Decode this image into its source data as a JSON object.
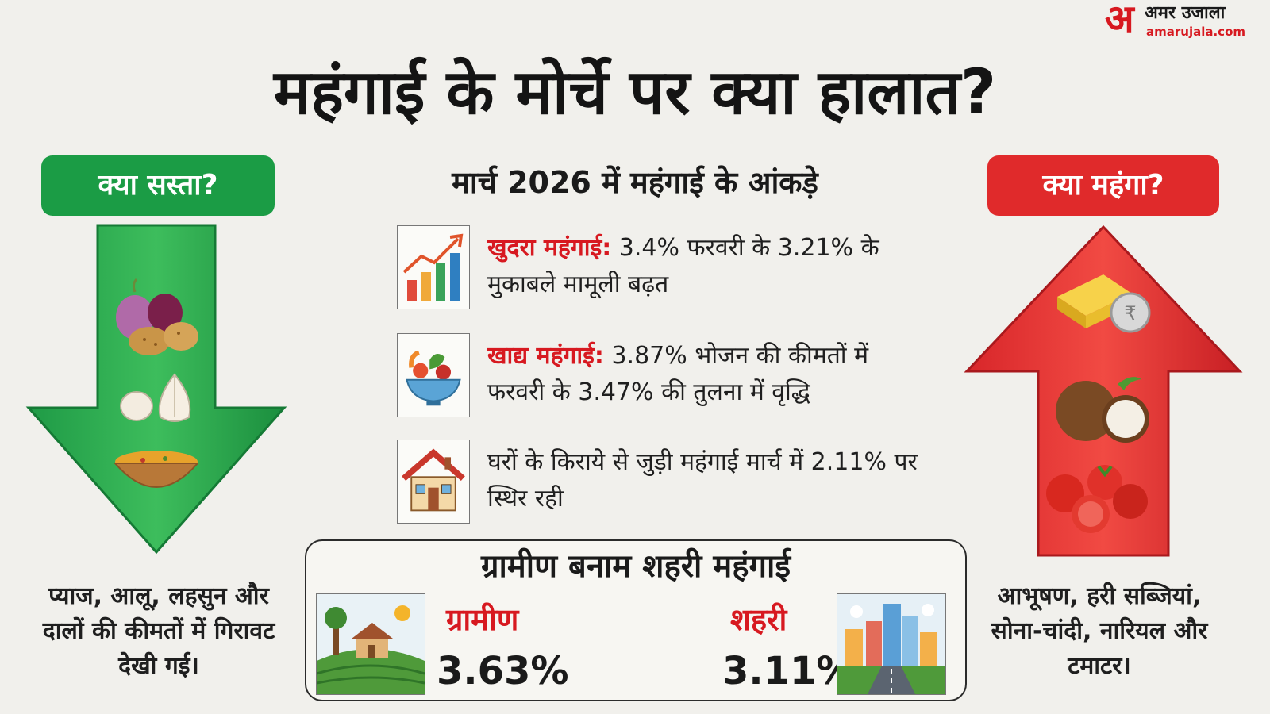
{
  "brand": {
    "mark": "अ",
    "name": "अमर उजाला",
    "url": "amarujala.com"
  },
  "title": "महंगाई के मोर्चे पर क्या हालात?",
  "left_panel": {
    "heading": "क्या सस्ता?",
    "caption": "प्याज, आलू, लहसुन और दालों की कीमतों में गिरावट देखी गई।",
    "color": "#1b9c45",
    "icons": [
      "onion-potato-icon",
      "garlic-icon",
      "dal-bowl-icon"
    ]
  },
  "right_panel": {
    "heading": "क्या महंगा?",
    "caption": "आभूषण, हरी सब्जियां, सोना-चांदी, नारियल और टमाटर।",
    "color": "#e02a2b",
    "icons": [
      "gold-silver-icon",
      "coconut-icon",
      "tomato-icon"
    ]
  },
  "center": {
    "subtitle": "मार्च 2026 में महंगाई के आंकड़े",
    "stats": [
      {
        "icon": "growth-chart-icon",
        "label": "खुदरा महंगाई:",
        "text": "3.4% फरवरी के 3.21% के मुकाबले मामूली बढ़त"
      },
      {
        "icon": "food-bowl-icon",
        "label": "खाद्य महंगाई:",
        "text": "3.87% भोजन की कीमतों में फरवरी के 3.47% की तुलना में वृद्धि"
      },
      {
        "icon": "house-icon",
        "label": "",
        "text": "घरों के किराये से जुड़ी महंगाई मार्च में 2.11% पर स्थिर रही"
      }
    ]
  },
  "comparison": {
    "title": "ग्रामीण बनाम शहरी महंगाई",
    "rural": {
      "label": "ग्रामीण",
      "value": "3.63%",
      "icon": "village-icon"
    },
    "urban": {
      "label": "शहरी",
      "value": "3.11%",
      "icon": "city-icon"
    }
  }
}
